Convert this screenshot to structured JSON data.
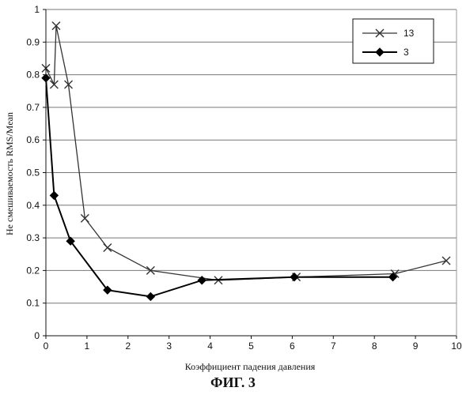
{
  "figure": {
    "caption": "ФИГ. 3"
  },
  "chart_data": {
    "type": "line",
    "xlabel": "Коэффициент падения давления",
    "ylabel": "Не смешиваемость RMS/Mean",
    "xlim": [
      0,
      10
    ],
    "ylim": [
      0,
      1
    ],
    "xticks": [
      0,
      1,
      2,
      3,
      4,
      5,
      6,
      7,
      8,
      9,
      10
    ],
    "yticks": [
      0,
      0.1,
      0.2,
      0.3,
      0.4,
      0.5,
      0.6,
      0.7,
      0.8,
      0.9,
      1
    ],
    "grid": "horizontal",
    "legend_position": "top-right",
    "series": [
      {
        "name": "13",
        "marker": "x",
        "color": "#333333",
        "points": [
          {
            "x": 0.0,
            "y": 0.82
          },
          {
            "x": 0.2,
            "y": 0.77
          },
          {
            "x": 0.25,
            "y": 0.95
          },
          {
            "x": 0.55,
            "y": 0.77
          },
          {
            "x": 0.95,
            "y": 0.36
          },
          {
            "x": 1.5,
            "y": 0.27
          },
          {
            "x": 2.55,
            "y": 0.2
          },
          {
            "x": 4.2,
            "y": 0.17
          },
          {
            "x": 6.1,
            "y": 0.18
          },
          {
            "x": 8.5,
            "y": 0.19
          },
          {
            "x": 9.75,
            "y": 0.23
          }
        ]
      },
      {
        "name": "3",
        "marker": "diamond",
        "color": "#000000",
        "points": [
          {
            "x": 0.0,
            "y": 0.79
          },
          {
            "x": 0.2,
            "y": 0.43
          },
          {
            "x": 0.6,
            "y": 0.29
          },
          {
            "x": 1.5,
            "y": 0.14
          },
          {
            "x": 2.55,
            "y": 0.12
          },
          {
            "x": 3.8,
            "y": 0.17
          },
          {
            "x": 6.05,
            "y": 0.18
          },
          {
            "x": 8.45,
            "y": 0.18
          }
        ]
      }
    ]
  }
}
